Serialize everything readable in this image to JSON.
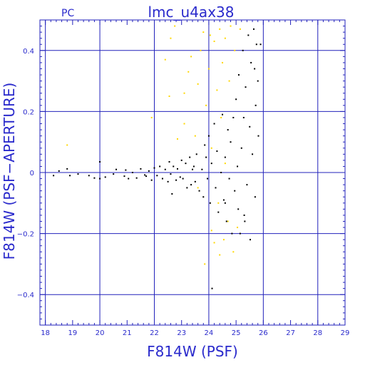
{
  "chart_data": {
    "type": "scatter",
    "title": "lmc_u4ax38",
    "subtitle": "PC",
    "xlabel": "F814W (PSF)",
    "ylabel": "F814W (PSF−APERTURE)",
    "xlim": [
      17.8,
      29.0
    ],
    "ylim": [
      -0.5,
      0.5
    ],
    "x_ticks": [
      18,
      19,
      20,
      21,
      22,
      23,
      24,
      25,
      26,
      27,
      28,
      29
    ],
    "y_ticks": [
      -0.4,
      -0.2,
      0,
      0.2,
      0.4
    ],
    "y_tick_labels": [
      "−0.4",
      "−0.2",
      "0",
      "0.2",
      "0.4"
    ],
    "grid": true,
    "colors": {
      "axes": "#2222bb",
      "grid": "#2222bb",
      "text": "#2a2acc",
      "series_selected": "#000000",
      "series_rejected": "#ffd700"
    },
    "series": [
      {
        "points": [
          [
            18.3,
            -0.01
          ],
          [
            18.5,
            0.005
          ],
          [
            18.8,
            0.012
          ],
          [
            18.9,
            -0.01
          ],
          [
            19.2,
            -0.005
          ],
          [
            19.6,
            -0.01
          ],
          [
            19.8,
            -0.018
          ],
          [
            20.0,
            -0.02
          ],
          [
            20.0,
            0.035
          ],
          [
            20.2,
            -0.015
          ],
          [
            20.5,
            -0.005
          ],
          [
            20.6,
            0.01
          ],
          [
            20.9,
            -0.012
          ],
          [
            20.95,
            0.008
          ],
          [
            21.05,
            -0.02
          ],
          [
            21.2,
            0.0
          ],
          [
            21.35,
            -0.018
          ],
          [
            21.5,
            0.012
          ],
          [
            21.65,
            -0.008
          ],
          [
            21.8,
            0.005
          ],
          [
            21.9,
            -0.025
          ],
          [
            22.0,
            0.015
          ],
          [
            22.1,
            -0.01
          ],
          [
            22.2,
            0.02
          ],
          [
            22.3,
            -0.02
          ],
          [
            22.4,
            0.01
          ],
          [
            22.5,
            -0.03
          ],
          [
            22.55,
            0.035
          ],
          [
            22.6,
            -0.005
          ],
          [
            22.7,
            0.02
          ],
          [
            22.8,
            -0.025
          ],
          [
            22.85,
            0.012
          ],
          [
            22.95,
            -0.015
          ],
          [
            23.0,
            0.04
          ],
          [
            23.05,
            -0.02
          ],
          [
            23.15,
            0.03
          ],
          [
            23.2,
            -0.05
          ],
          [
            23.3,
            0.05
          ],
          [
            23.35,
            -0.04
          ],
          [
            23.45,
            0.02
          ],
          [
            23.5,
            -0.03
          ],
          [
            23.55,
            0.06
          ],
          [
            23.65,
            -0.06
          ],
          [
            23.75,
            0.01
          ],
          [
            23.8,
            -0.08
          ],
          [
            23.85,
            0.09
          ],
          [
            23.95,
            -0.02
          ],
          [
            24.0,
            0.12
          ],
          [
            24.05,
            -0.1
          ],
          [
            24.1,
            0.03
          ],
          [
            24.2,
            0.16
          ],
          [
            24.25,
            -0.05
          ],
          [
            24.3,
            0.07
          ],
          [
            24.35,
            -0.13
          ],
          [
            24.45,
            0.0
          ],
          [
            24.5,
            0.19
          ],
          [
            24.55,
            -0.09
          ],
          [
            24.6,
            0.05
          ],
          [
            24.65,
            -0.16
          ],
          [
            24.7,
            0.14
          ],
          [
            24.75,
            -0.02
          ],
          [
            24.8,
            0.1
          ],
          [
            24.85,
            -0.2
          ],
          [
            24.9,
            0.18
          ],
          [
            24.95,
            -0.06
          ],
          [
            25.0,
            0.24
          ],
          [
            25.05,
            0.02
          ],
          [
            25.08,
            -0.12
          ],
          [
            25.1,
            0.32
          ],
          [
            25.15,
            -0.2
          ],
          [
            25.2,
            0.08
          ],
          [
            25.25,
            0.4
          ],
          [
            25.3,
            -0.14
          ],
          [
            25.35,
            0.28
          ],
          [
            25.4,
            -0.04
          ],
          [
            25.45,
            0.45
          ],
          [
            25.5,
            0.15
          ],
          [
            25.52,
            -0.22
          ],
          [
            25.55,
            0.36
          ],
          [
            25.6,
            0.06
          ],
          [
            25.65,
            0.47
          ],
          [
            25.7,
            -0.08
          ],
          [
            25.72,
            0.22
          ],
          [
            25.75,
            0.42
          ],
          [
            25.8,
            0.3
          ],
          [
            25.82,
            0.12
          ],
          [
            25.9,
            0.42
          ],
          [
            24.12,
            -0.38
          ],
          [
            25.32,
            -0.16
          ],
          [
            24.6,
            -0.1
          ],
          [
            23.9,
            0.05
          ],
          [
            23.4,
            0.01
          ],
          [
            22.65,
            -0.07
          ],
          [
            21.7,
            -0.012
          ],
          [
            25.28,
            0.18
          ],
          [
            25.68,
            0.34
          ]
        ]
      },
      {
        "points": [
          [
            18.8,
            0.09
          ],
          [
            21.9,
            0.18
          ],
          [
            22.4,
            0.37
          ],
          [
            22.55,
            0.25
          ],
          [
            22.6,
            0.44
          ],
          [
            22.75,
            0.48
          ],
          [
            23.1,
            0.16
          ],
          [
            23.25,
            0.33
          ],
          [
            23.35,
            0.38
          ],
          [
            23.5,
            0.12
          ],
          [
            23.6,
            0.29
          ],
          [
            23.7,
            0.4
          ],
          [
            23.8,
            0.46
          ],
          [
            23.9,
            0.22
          ],
          [
            24.0,
            0.34
          ],
          [
            24.1,
            0.08
          ],
          [
            24.2,
            0.43
          ],
          [
            24.3,
            0.27
          ],
          [
            24.4,
            0.47
          ],
          [
            24.45,
            0.18
          ],
          [
            24.5,
            0.36
          ],
          [
            24.6,
            0.44
          ],
          [
            24.75,
            0.3
          ],
          [
            24.8,
            0.48
          ],
          [
            24.95,
            0.4
          ],
          [
            23.85,
            -0.3
          ],
          [
            24.1,
            -0.19
          ],
          [
            24.2,
            -0.23
          ],
          [
            24.4,
            -0.27
          ],
          [
            24.55,
            -0.22
          ],
          [
            24.7,
            -0.16
          ],
          [
            24.9,
            -0.26
          ],
          [
            25.05,
            -0.18
          ],
          [
            23.6,
            -0.05
          ],
          [
            24.35,
            -0.1
          ],
          [
            23.1,
            0.26
          ],
          [
            24.05,
            0.45
          ],
          [
            22.85,
            0.11
          ],
          [
            24.6,
            0.03
          ],
          [
            25.15,
            0.47
          ]
        ]
      }
    ]
  }
}
